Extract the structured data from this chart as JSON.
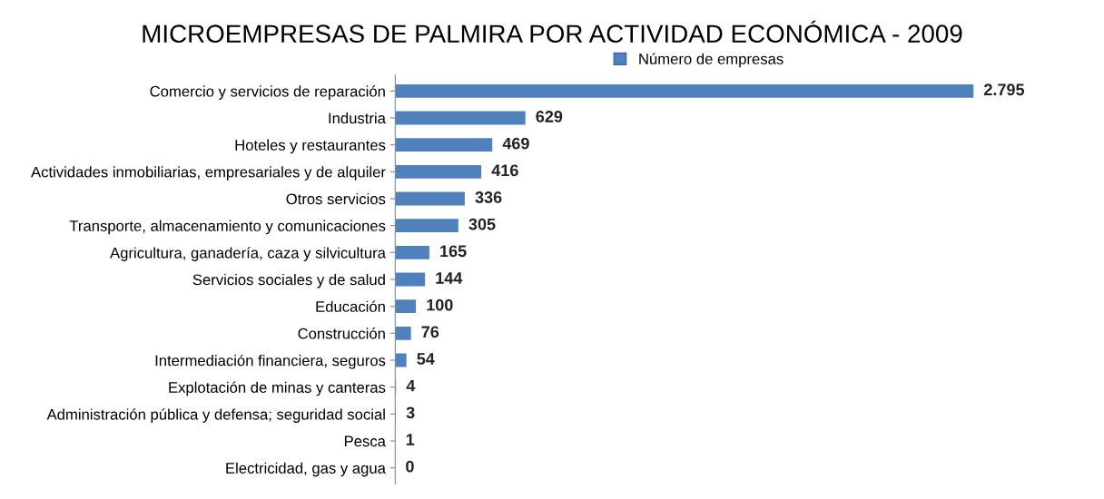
{
  "chart_data": {
    "type": "bar",
    "orientation": "horizontal",
    "title": "MICROEMPRESAS DE PALMIRA POR ACTIVIDAD ECONÓMICA - 2009",
    "categories": [
      "Comercio y servicios de reparación",
      "Industria",
      "Hoteles y restaurantes",
      "Actividades inmobiliarias, empresariales y de alquiler",
      "Otros servicios",
      "Transporte, almacenamiento y comunicaciones",
      "Agricultura, ganadería, caza y silvicultura",
      "Servicios sociales y de salud",
      "Educación",
      "Construcción",
      "Intermediación financiera, seguros",
      "Explotación de minas y canteras",
      "Administración pública y defensa; seguridad social",
      "Pesca",
      "Electricidad, gas y agua"
    ],
    "series": [
      {
        "name": "Número de empresas",
        "color": "#4f81bd",
        "values": [
          2795,
          629,
          469,
          416,
          336,
          305,
          165,
          144,
          100,
          76,
          54,
          4,
          3,
          1,
          0
        ],
        "value_labels": [
          "2.795",
          "629",
          "469",
          "416",
          "336",
          "305",
          "165",
          "144",
          "100",
          "76",
          "54",
          "4",
          "3",
          "1",
          "0"
        ]
      }
    ],
    "legend": "top",
    "grid": false
  }
}
